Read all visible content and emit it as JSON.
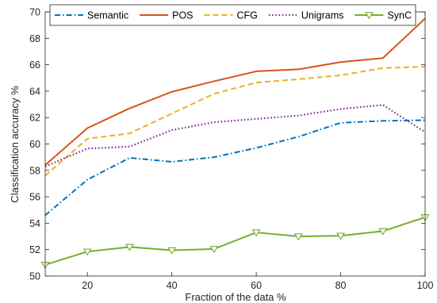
{
  "chart_data": {
    "type": "line",
    "title": "",
    "xlabel": "Fraction of the data %",
    "ylabel": "Classification accuracy %",
    "xlim": [
      10,
      100
    ],
    "ylim": [
      50,
      70
    ],
    "xticks": [
      20,
      40,
      60,
      80,
      100
    ],
    "yticks": [
      50,
      52,
      54,
      56,
      58,
      60,
      62,
      64,
      66,
      68,
      70
    ],
    "grid": false,
    "legend_position": "top",
    "x": [
      10,
      20,
      30,
      40,
      50,
      60,
      70,
      80,
      90,
      100
    ],
    "series": [
      {
        "name": "Semantic",
        "color": "#0072BD",
        "style": "dashdot",
        "marker": "none",
        "values": [
          54.6,
          57.3,
          58.95,
          58.65,
          59.0,
          59.7,
          60.55,
          61.6,
          61.75,
          61.8
        ]
      },
      {
        "name": "POS",
        "color": "#D95319",
        "style": "solid",
        "marker": "none",
        "values": [
          58.4,
          61.2,
          62.7,
          63.95,
          64.75,
          65.5,
          65.65,
          66.2,
          66.5,
          69.5
        ]
      },
      {
        "name": "CFG",
        "color": "#EDB120",
        "style": "dashed",
        "marker": "none",
        "values": [
          57.6,
          60.4,
          60.8,
          62.3,
          63.8,
          64.65,
          64.9,
          65.2,
          65.75,
          65.85
        ]
      },
      {
        "name": "Unigrams",
        "color": "#7E2F8E",
        "style": "dotted",
        "marker": "none",
        "values": [
          58.3,
          59.65,
          59.8,
          61.05,
          61.65,
          61.9,
          62.15,
          62.65,
          62.95,
          60.9
        ]
      },
      {
        "name": "SynC",
        "color": "#77AC30",
        "style": "solid",
        "marker": "triangle-down",
        "values": [
          50.85,
          51.85,
          52.2,
          51.95,
          52.05,
          53.3,
          53.0,
          53.05,
          53.4,
          54.45
        ]
      }
    ]
  }
}
